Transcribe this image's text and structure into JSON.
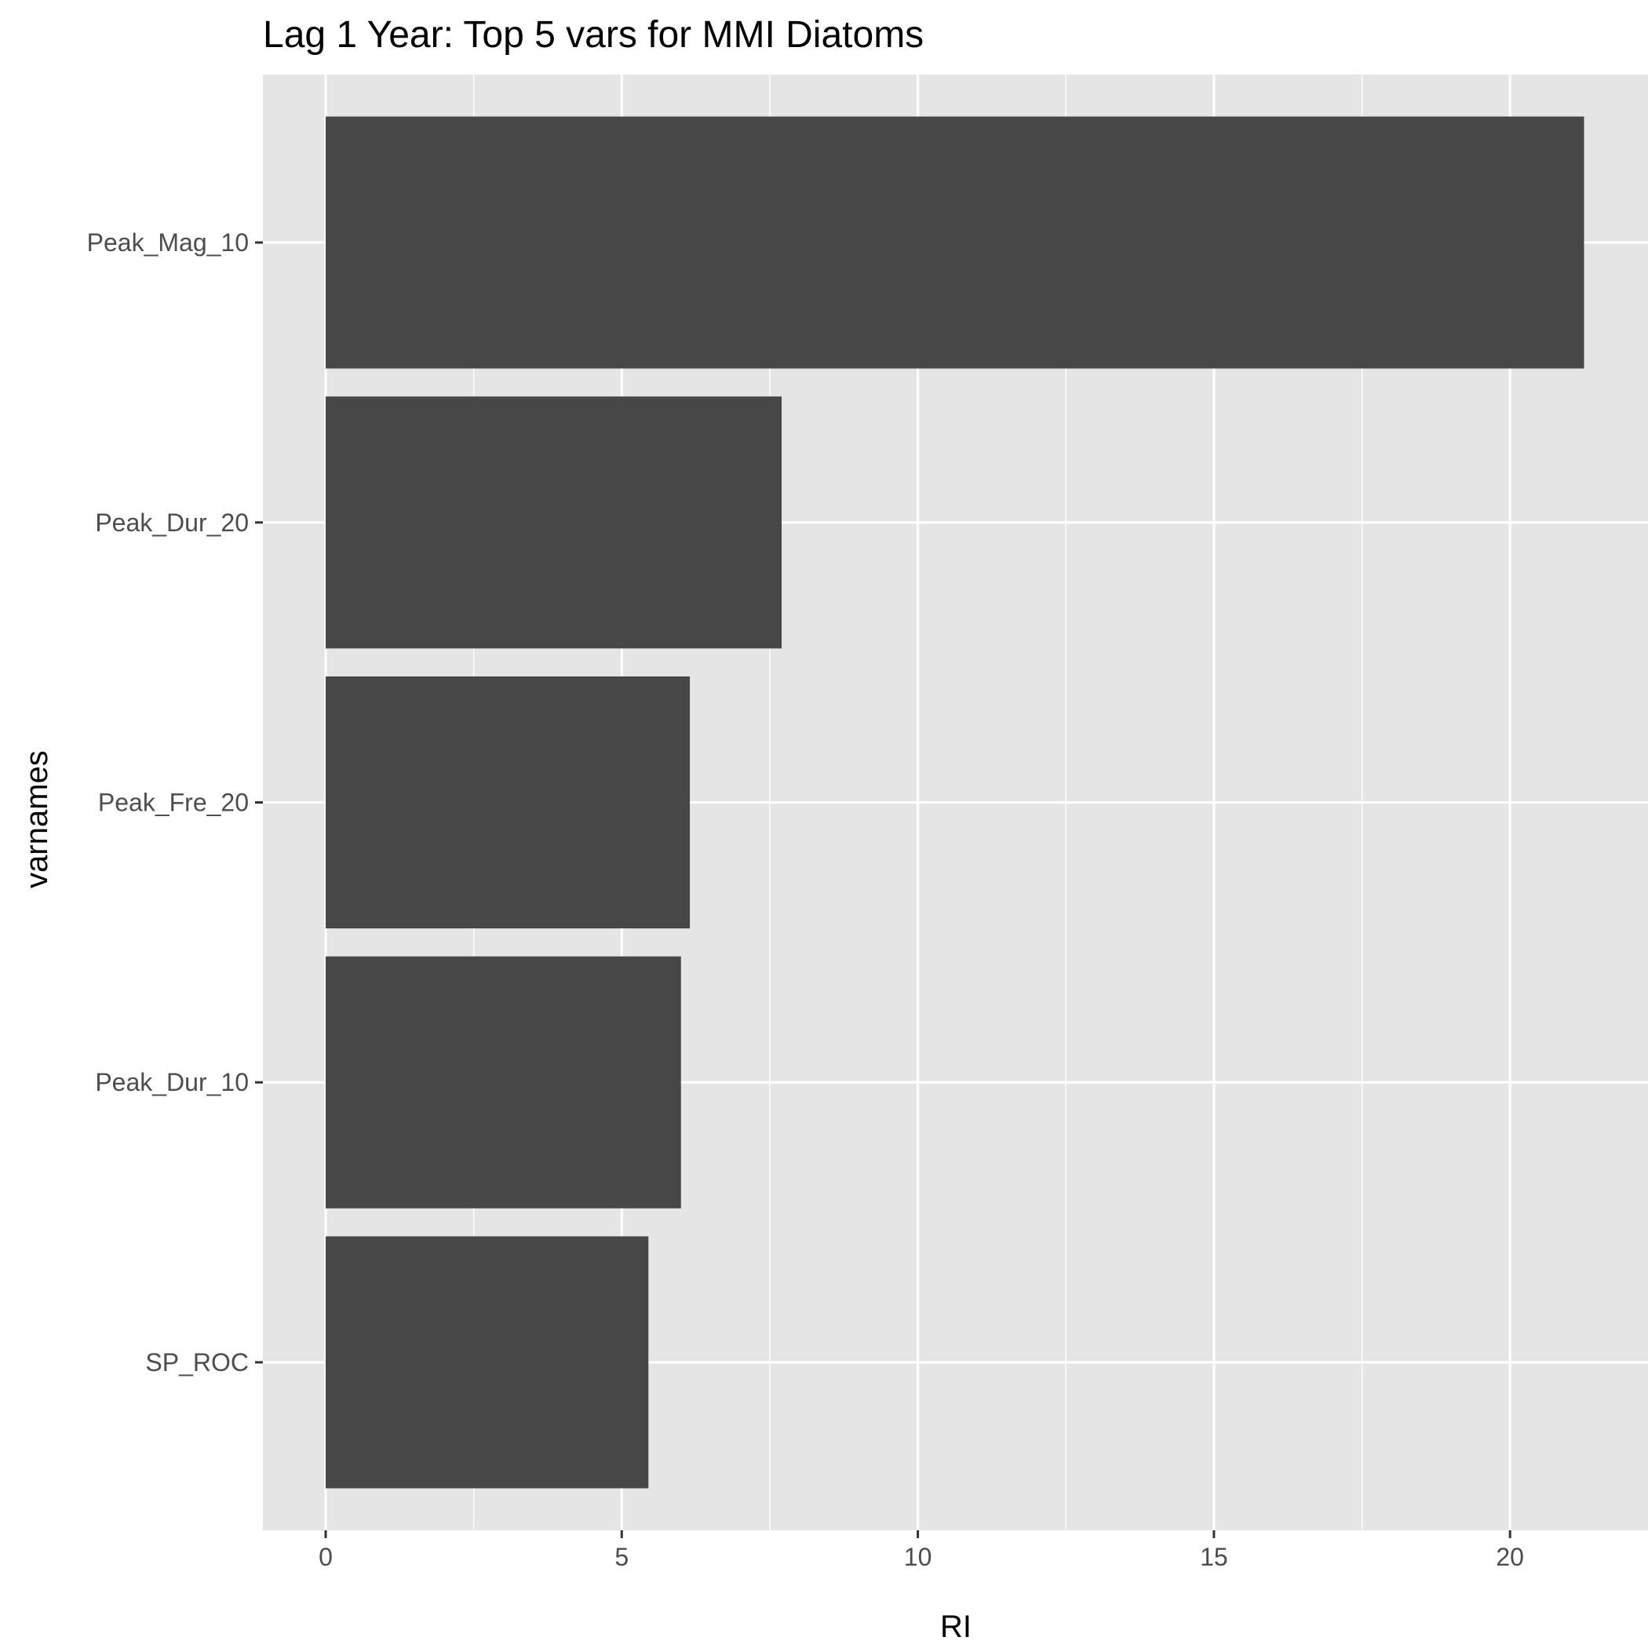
{
  "chart_data": {
    "type": "bar",
    "orientation": "horizontal",
    "title": "Lag 1 Year: Top 5 vars for MMI Diatoms",
    "xlabel": "RI",
    "ylabel": "varnames",
    "categories": [
      "Peak_Mag_10",
      "Peak_Dur_20",
      "Peak_Fre_20",
      "Peak_Dur_10",
      "SP_ROC"
    ],
    "values": [
      21.25,
      7.7,
      6.15,
      6.0,
      5.45
    ],
    "xlim": [
      -1.06,
      22.33
    ],
    "xticks": [
      0,
      5,
      10,
      15,
      20
    ],
    "xtick_labels": [
      "0",
      "5",
      "10",
      "15",
      "20"
    ],
    "grid": true,
    "legend": "none",
    "colors": {
      "bar": "#474747",
      "panel": "#e5e5e5",
      "gridline": "#ffffff",
      "tick_text": "#4d4d4d",
      "axis_title": "#000000",
      "tick_mark": "#333333"
    }
  }
}
